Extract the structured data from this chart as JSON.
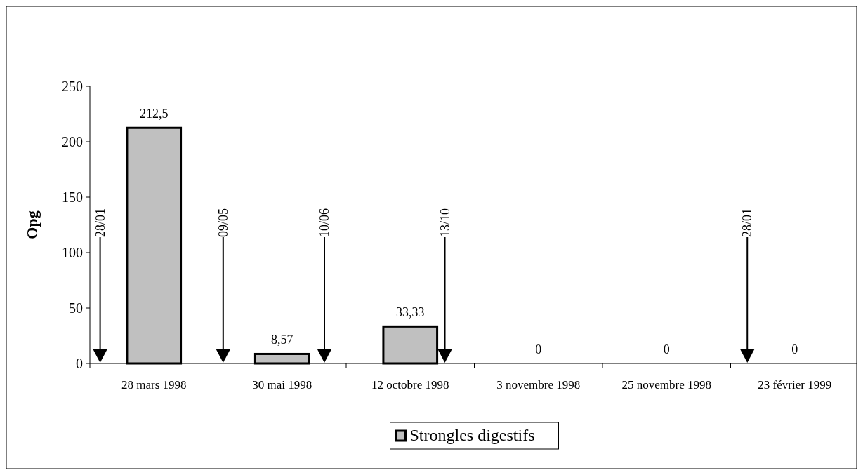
{
  "chart_data": {
    "type": "bar",
    "ylabel": "Opg",
    "categories": [
      "28 mars 1998",
      "30 mai 1998",
      "12 octobre 1998",
      "3 novembre 1998",
      "25 novembre 1998",
      "23 février 1999"
    ],
    "series": [
      {
        "name": "Strongles digestifs",
        "color": "#c0c0c0",
        "values": [
          212.5,
          8.57,
          33.33,
          0,
          0,
          0
        ]
      }
    ],
    "value_labels": [
      "212,5",
      "8,57",
      "33,33",
      "0",
      "0",
      "0"
    ],
    "ylim": [
      0,
      250
    ],
    "yticks": [
      0,
      50,
      100,
      150,
      200,
      250
    ],
    "legend": "bottom",
    "annotations": [
      "28/01",
      "09/05",
      "10/06",
      "13/10",
      "28/01"
    ]
  }
}
